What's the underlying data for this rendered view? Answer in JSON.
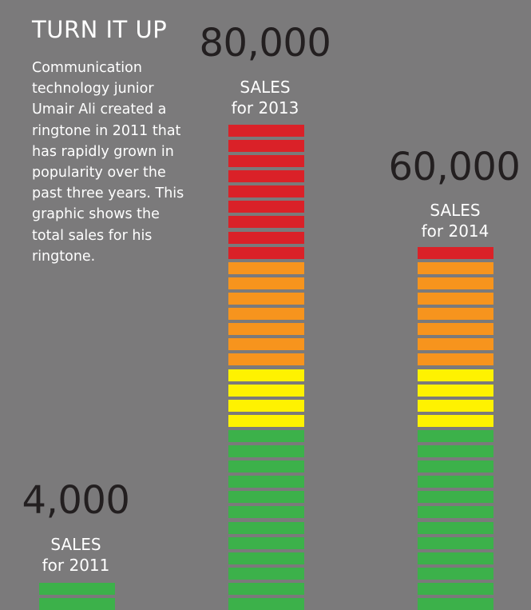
{
  "header": {
    "title": "TURN IT UP",
    "description": "Communication technology junior Umair Ali created a ringtone in 2011 that has rapidly grown in popularity over the past three years. This graphic shows the total sales for his ringtone."
  },
  "chart_data": {
    "type": "bar",
    "title": "TURN IT UP",
    "categories": [
      "2011",
      "2013",
      "2014"
    ],
    "values": [
      4000,
      80000,
      60000
    ],
    "data_labels": [
      "4,000",
      "80,000",
      "60,000"
    ],
    "sub_labels": [
      [
        "SALES",
        "for 2011"
      ],
      [
        "SALES",
        "for 2013"
      ],
      [
        "SALES",
        "for 2014"
      ]
    ],
    "units_per_segment": 2500,
    "segment_colors": {
      "green": "#3cb14a",
      "yellow": "#fff200",
      "orange": "#f7941d",
      "red": "#da2128"
    },
    "color_thresholds_segments": {
      "green_max": 12,
      "yellow_max": 16,
      "orange_max": 23,
      "red_max": 32
    }
  }
}
